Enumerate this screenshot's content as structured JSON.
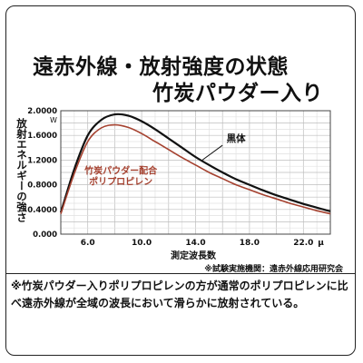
{
  "title": {
    "line1": "遠赤外線・放射強度の状態",
    "line2": "竹炭パウダー入り"
  },
  "chart_data": {
    "type": "line",
    "ylabel": "放射エネルギーの強さ",
    "y_unit": "W",
    "xlabel": "測定波長数",
    "x_unit": "μ",
    "xlim": [
      4.0,
      24.0
    ],
    "ylim": [
      0.0,
      2.0
    ],
    "x_ticks": [
      6.0,
      10.0,
      14.0,
      18.0,
      22.0
    ],
    "x_tick_labels": [
      "6.0",
      "10.0",
      "14.0",
      "18.0",
      "22.0"
    ],
    "y_ticks": [
      0.0,
      0.4,
      0.8,
      1.2,
      1.6,
      2.0
    ],
    "y_tick_labels": [
      "0.000",
      "0.4000",
      "0.8000",
      "1.2000",
      "1.6000",
      "2.0000"
    ],
    "grid": true,
    "series": [
      {
        "name": "黒体",
        "color": "#111111",
        "x": [
          4.0,
          5.0,
          6.0,
          7.0,
          8.0,
          9.0,
          10.0,
          11.0,
          12.0,
          13.0,
          14.0,
          15.0,
          16.0,
          17.0,
          18.0,
          19.0,
          20.0,
          21.0,
          22.0,
          23.0,
          24.0
        ],
        "y": [
          0.35,
          1.05,
          1.6,
          1.85,
          1.94,
          1.92,
          1.83,
          1.7,
          1.55,
          1.4,
          1.25,
          1.12,
          1.0,
          0.89,
          0.8,
          0.71,
          0.63,
          0.56,
          0.49,
          0.43,
          0.37
        ]
      },
      {
        "name": "竹炭パウダー配合\nポリプロピレン",
        "color": "#a5412f",
        "x": [
          4.0,
          5.0,
          6.0,
          7.0,
          8.0,
          9.0,
          10.0,
          11.0,
          12.0,
          13.0,
          14.0,
          15.0,
          16.0,
          17.0,
          18.0,
          19.0,
          20.0,
          21.0,
          22.0,
          23.0,
          24.0
        ],
        "y": [
          0.33,
          0.98,
          1.5,
          1.72,
          1.77,
          1.73,
          1.63,
          1.5,
          1.37,
          1.24,
          1.12,
          1.0,
          0.9,
          0.8,
          0.72,
          0.64,
          0.57,
          0.5,
          0.44,
          0.38,
          0.33
        ]
      }
    ],
    "annotations": {
      "blackbody": "黒体",
      "sample_line1": "竹炭パウダー配合",
      "sample_line2": "ポリプロピレン",
      "source": "※試験実施機関：遠赤外線応用研究会"
    }
  },
  "note": "※竹炭パウダー入りポリプロピレンの方が通常のポリプロピレンに比べ遠赤外線が全域の波長において滑らかに放射されている。"
}
